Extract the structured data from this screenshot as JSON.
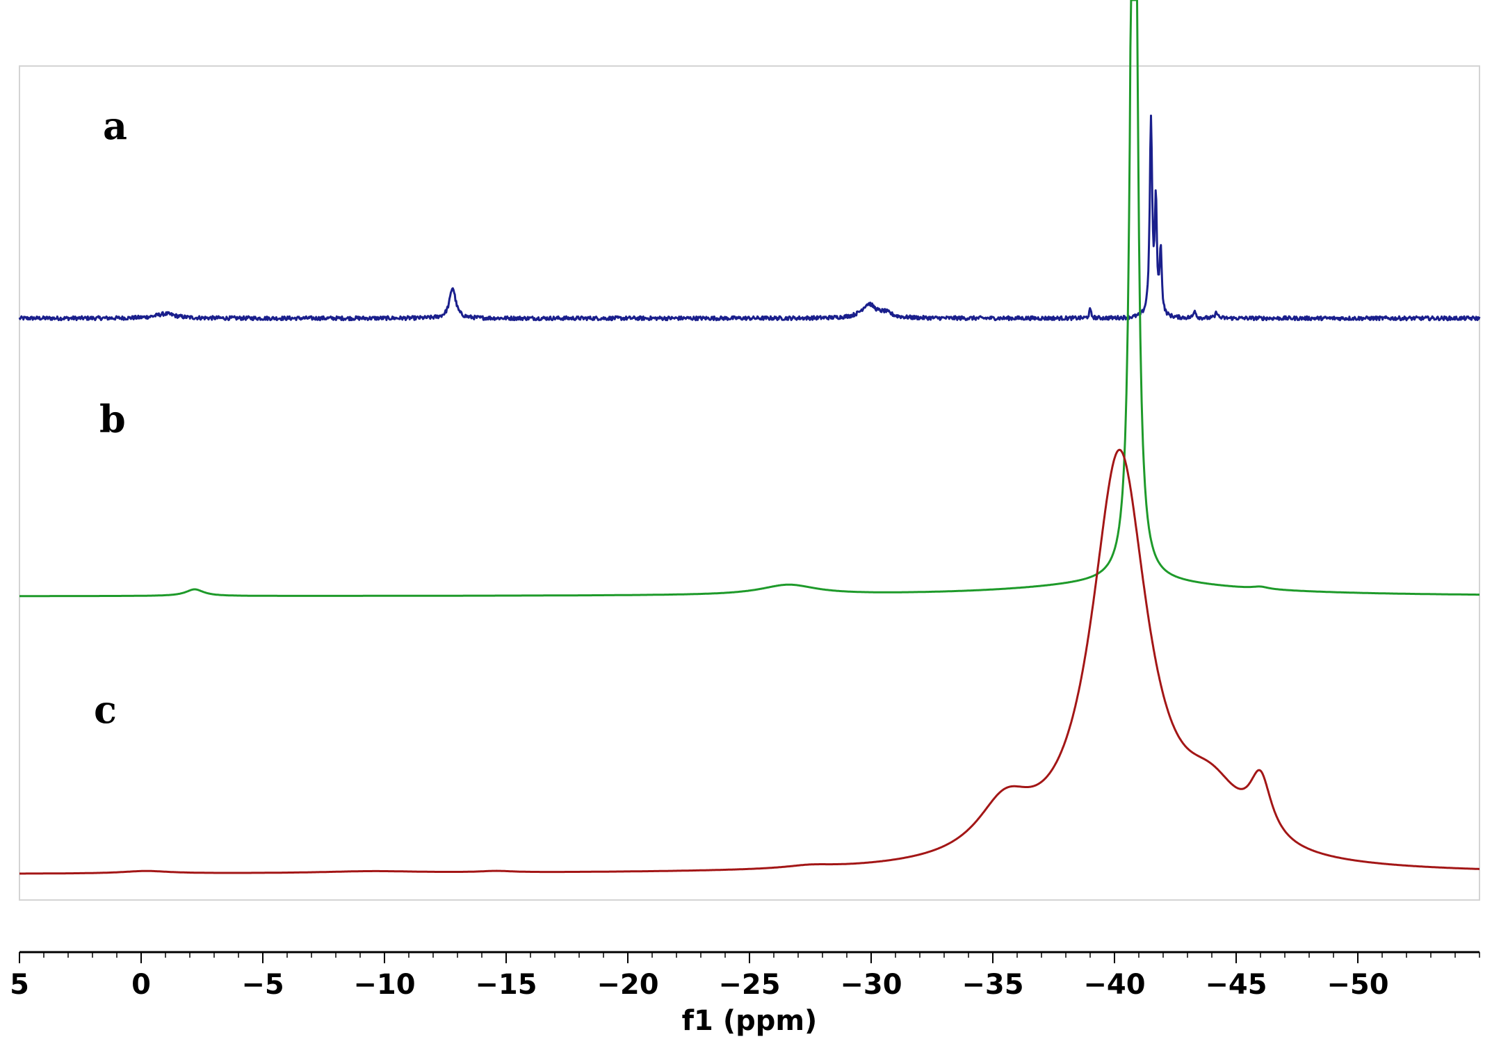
{
  "chart_data": {
    "type": "line",
    "title": "",
    "xlabel": "f1 (ppm)",
    "ylabel": "",
    "x_reversed": true,
    "xlim": [
      5,
      -55
    ],
    "x_ticks": [
      5,
      0,
      -5,
      -10,
      -15,
      -20,
      -25,
      -30,
      -35,
      -40,
      -45,
      -50
    ],
    "x_tick_labels": [
      "5",
      "0",
      "−5",
      "−10",
      "−15",
      "−20",
      "−25",
      "−30",
      "−35",
      "−40",
      "−45",
      "−50"
    ],
    "grid": false,
    "legend": "none",
    "series": [
      {
        "label": "a",
        "color": "#1a1f8c",
        "baseline_noise": 0.035,
        "baseline": 0,
        "peaks": [
          {
            "x": -1.0,
            "height": 0.08,
            "width": 0.5
          },
          {
            "x": -12.8,
            "height": 0.55,
            "width": 0.15
          },
          {
            "x": -29.9,
            "height": 0.25,
            "width": 0.35
          },
          {
            "x": -30.6,
            "height": 0.08,
            "width": 0.3
          },
          {
            "x": -39.0,
            "height": 0.15,
            "width": 0.05
          },
          {
            "x": -41.5,
            "height": 3.5,
            "width": 0.06
          },
          {
            "x": -41.7,
            "height": 2.0,
            "width": 0.05
          },
          {
            "x": -41.9,
            "height": 1.2,
            "width": 0.05
          },
          {
            "x": -43.3,
            "height": 0.15,
            "width": 0.05
          },
          {
            "x": -44.2,
            "height": 0.12,
            "width": 0.05
          }
        ]
      },
      {
        "label": "b",
        "color": "#1e9a2a",
        "baseline_noise": 0.0,
        "baseline": 0,
        "peaks": [
          {
            "x": -2.2,
            "height": 0.12,
            "width": 0.45
          },
          {
            "x": -26.6,
            "height": 0.18,
            "width": 1.4
          },
          {
            "x": -40.8,
            "height": 20.0,
            "width": 0.14
          },
          {
            "x": -40.8,
            "height": 0.25,
            "width": 5.0
          },
          {
            "x": -46.0,
            "height": 0.04,
            "width": 0.4
          }
        ]
      },
      {
        "label": "c",
        "color": "#a31616",
        "baseline_noise": 0.0,
        "baseline": 0,
        "peaks": [
          {
            "x": -0.2,
            "height": 0.045,
            "width": 1.2
          },
          {
            "x": -9.5,
            "height": 0.035,
            "width": 2.5
          },
          {
            "x": -14.6,
            "height": 0.025,
            "width": 0.8
          },
          {
            "x": -27.5,
            "height": 0.05,
            "width": 1.2
          },
          {
            "x": -35.5,
            "height": 0.9,
            "width": 1.4
          },
          {
            "x": -40.2,
            "height": 7.4,
            "width": 1.4
          },
          {
            "x": -44.0,
            "height": 1.0,
            "width": 1.6
          },
          {
            "x": -46.0,
            "height": 1.05,
            "width": 0.55
          }
        ]
      }
    ]
  }
}
